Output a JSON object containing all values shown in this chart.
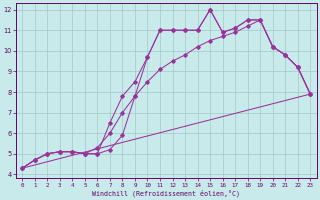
{
  "xlabel": "Windchill (Refroidissement éolien,°C)",
  "ylabel": "",
  "background_color": "#c8eaea",
  "grid_color": "#a0c8c8",
  "line_color": "#993399",
  "xlim": [
    -0.5,
    23.5
  ],
  "ylim": [
    3.8,
    12.3
  ],
  "xticks": [
    0,
    1,
    2,
    3,
    4,
    5,
    6,
    7,
    8,
    9,
    10,
    11,
    12,
    13,
    14,
    15,
    16,
    17,
    18,
    19,
    20,
    21,
    22,
    23
  ],
  "yticks": [
    4,
    5,
    6,
    7,
    8,
    9,
    10,
    11,
    12
  ],
  "line1_x": [
    0,
    1,
    2,
    3,
    4,
    5,
    6,
    7,
    8,
    9,
    10,
    11,
    12,
    13,
    14,
    15,
    16,
    17,
    18,
    19,
    20,
    21,
    22,
    23
  ],
  "line1_y": [
    4.3,
    4.7,
    5.0,
    5.1,
    5.1,
    5.0,
    5.0,
    5.2,
    5.9,
    7.8,
    9.7,
    11.0,
    11.0,
    11.0,
    11.0,
    12.0,
    10.9,
    11.1,
    11.5,
    11.5,
    10.2,
    9.8,
    9.2,
    7.9
  ],
  "line2_x": [
    0,
    1,
    2,
    3,
    4,
    5,
    6,
    7,
    8,
    9,
    10,
    11,
    12,
    13,
    14,
    15,
    16,
    17,
    18,
    19,
    20,
    21,
    22,
    23
  ],
  "line2_y": [
    4.3,
    4.7,
    5.0,
    5.1,
    5.1,
    5.0,
    5.3,
    6.0,
    7.0,
    7.8,
    8.5,
    9.1,
    9.5,
    9.8,
    10.2,
    10.5,
    10.7,
    10.9,
    11.2,
    11.5,
    10.2,
    9.8,
    9.2,
    7.9
  ],
  "line3_x": [
    0,
    23
  ],
  "line3_y": [
    4.3,
    7.9
  ],
  "line4_x": [
    0,
    1,
    2,
    3,
    4,
    5,
    6,
    7,
    8,
    9,
    10,
    11,
    12,
    13,
    14,
    15,
    16,
    17,
    18,
    19,
    20,
    21,
    22,
    23
  ],
  "line4_y": [
    4.3,
    4.7,
    5.0,
    5.1,
    5.1,
    5.0,
    5.0,
    6.5,
    7.8,
    8.5,
    9.7,
    11.0,
    11.0,
    11.0,
    11.0,
    12.0,
    10.9,
    11.1,
    11.5,
    11.5,
    10.2,
    9.8,
    9.2,
    7.9
  ]
}
